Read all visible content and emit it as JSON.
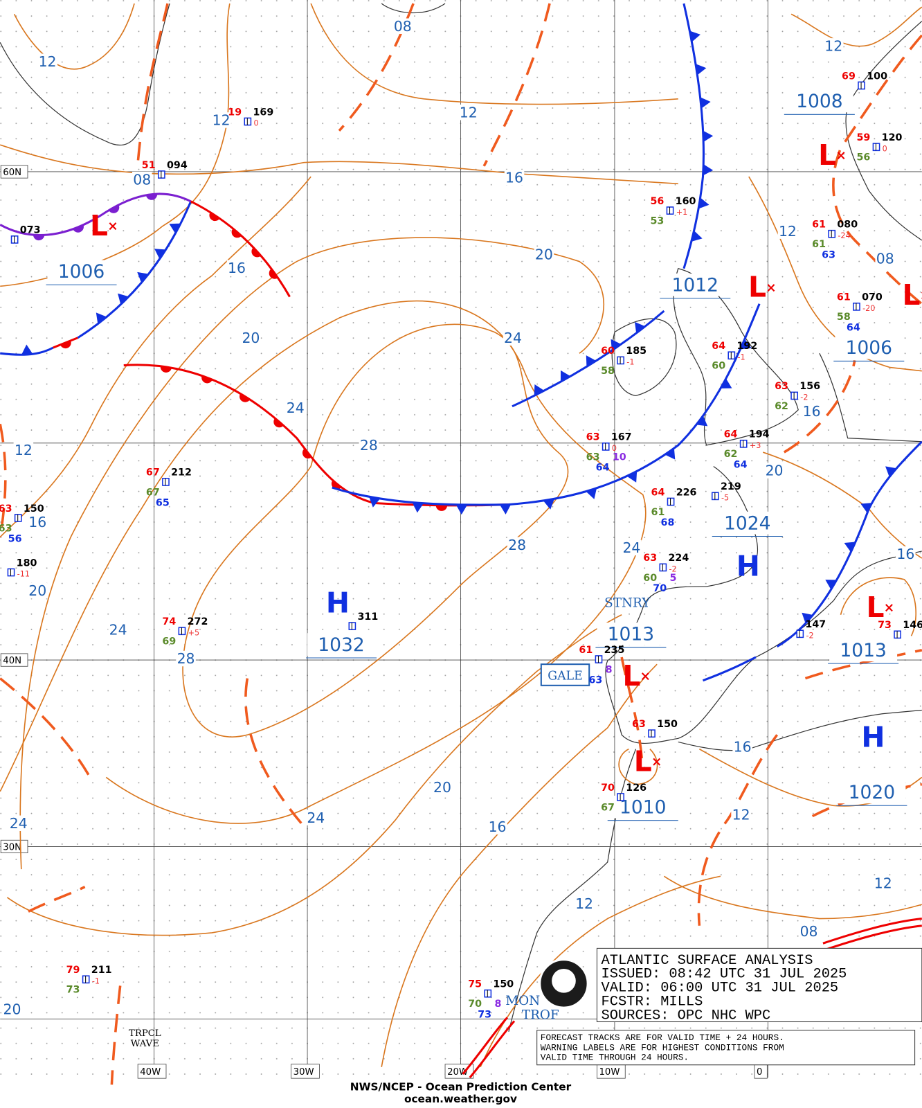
{
  "map": {
    "latitude_labels": [
      "60N",
      "40N",
      "30N"
    ],
    "longitude_labels": [
      "40W",
      "30W",
      "20W",
      "10W",
      "0"
    ],
    "isobar_labels": [
      "12",
      "08",
      "12",
      "12",
      "12",
      "08",
      "16",
      "16",
      "20",
      "12",
      "08",
      "20",
      "24",
      "24",
      "28",
      "12",
      "16",
      "20",
      "16",
      "28",
      "24",
      "16",
      "20",
      "24",
      "28",
      "16",
      "20",
      "24",
      "16",
      "12",
      "24",
      "12",
      "12",
      "08",
      "20"
    ],
    "centers": [
      "L",
      "L",
      "L",
      "L",
      "L",
      "L",
      "L",
      "H",
      "H",
      "H"
    ],
    "pressure_labels": [
      "1006",
      "1012",
      "1008",
      "1006",
      "1024",
      "1032",
      "1013",
      "1013",
      "1010",
      "1020"
    ],
    "feature_labels": [
      "GALE",
      "STNRY",
      "TRPCL",
      "WAVE",
      "MON",
      "TROF"
    ],
    "stations": [
      {
        "pressure": "094",
        "temp": "51"
      },
      {
        "pressure": "169",
        "temp": "19",
        "tendency": "0"
      },
      {
        "pressure": "073"
      },
      {
        "pressure": "212",
        "temp": "67",
        "dewpoint": "67",
        "sst": "65"
      },
      {
        "pressure": "150",
        "temp": "63",
        "dewpoint": "63",
        "sst": "56"
      },
      {
        "pressure": "180",
        "tendency": "-11"
      },
      {
        "pressure": "272",
        "temp": "74",
        "dewpoint": "69",
        "tendency": "+5"
      },
      {
        "pressure": "311"
      },
      {
        "pressure": "160",
        "temp": "56",
        "dewpoint": "53",
        "tendency": "+1"
      },
      {
        "pressure": "185",
        "temp": "60",
        "dewpoint": "58",
        "tendency": "-1"
      },
      {
        "pressure": "192",
        "temp": "64",
        "dewpoint": "60",
        "tendency": "-1"
      },
      {
        "pressure": "156",
        "temp": "63",
        "dewpoint": "62",
        "tendency": "-2"
      },
      {
        "pressure": "167",
        "temp": "63",
        "dewpoint": "63",
        "sst": "64",
        "visibility": "10",
        "tendency": "0"
      },
      {
        "pressure": "194",
        "temp": "64",
        "dewpoint": "62",
        "sst": "64",
        "tendency": "+3"
      },
      {
        "pressure": "226",
        "temp": "64",
        "dewpoint": "61",
        "sst": "68"
      },
      {
        "pressure": "219",
        "tendency": "-5"
      },
      {
        "pressure": "224",
        "temp": "63",
        "dewpoint": "60",
        "sst": "70",
        "visibility": "5",
        "tendency": "-2"
      },
      {
        "pressure": "235",
        "temp": "61",
        "sst": "63",
        "visibility": "8"
      },
      {
        "pressure": "150",
        "temp": "63"
      },
      {
        "pressure": "126",
        "temp": "70",
        "dewpoint": "67"
      },
      {
        "pressure": "080",
        "temp": "61",
        "dewpoint": "61",
        "sst": "63",
        "tendency": "-24"
      },
      {
        "pressure": "070",
        "temp": "61",
        "dewpoint": "58",
        "sst": "64",
        "tendency": "-20"
      },
      {
        "pressure": "100",
        "temp": "69"
      },
      {
        "pressure": "120",
        "temp": "59",
        "dewpoint": "56",
        "tendency": "0"
      },
      {
        "pressure": "147",
        "tendency": "-2"
      },
      {
        "pressure": "146",
        "temp": "73"
      },
      {
        "pressure": "211",
        "temp": "79",
        "dewpoint": "73",
        "tendency": "-1"
      },
      {
        "pressure": "150",
        "temp": "75",
        "dewpoint": "70",
        "sst": "73",
        "visibility": "8"
      }
    ],
    "info_box": [
      "ATLANTIC SURFACE ANALYSIS",
      "ISSUED:  08:42 UTC 31 JUL 2025",
      "VALID:  06:00 UTC 31 JUL 2025",
      "FCSTR:  MILLS",
      "SOURCES:  OPC NHC WPC"
    ],
    "note": [
      "FORECAST TRACKS ARE FOR VALID TIME + 24 HOURS.",
      "WARNING LABELS ARE FOR HIGHEST CONDITIONS FROM",
      "VALID TIME THROUGH 24 HOURS."
    ],
    "footer": {
      "agency": "NWS/NCEP - Ocean Prediction Center",
      "url": "ocean.weather.gov"
    }
  }
}
